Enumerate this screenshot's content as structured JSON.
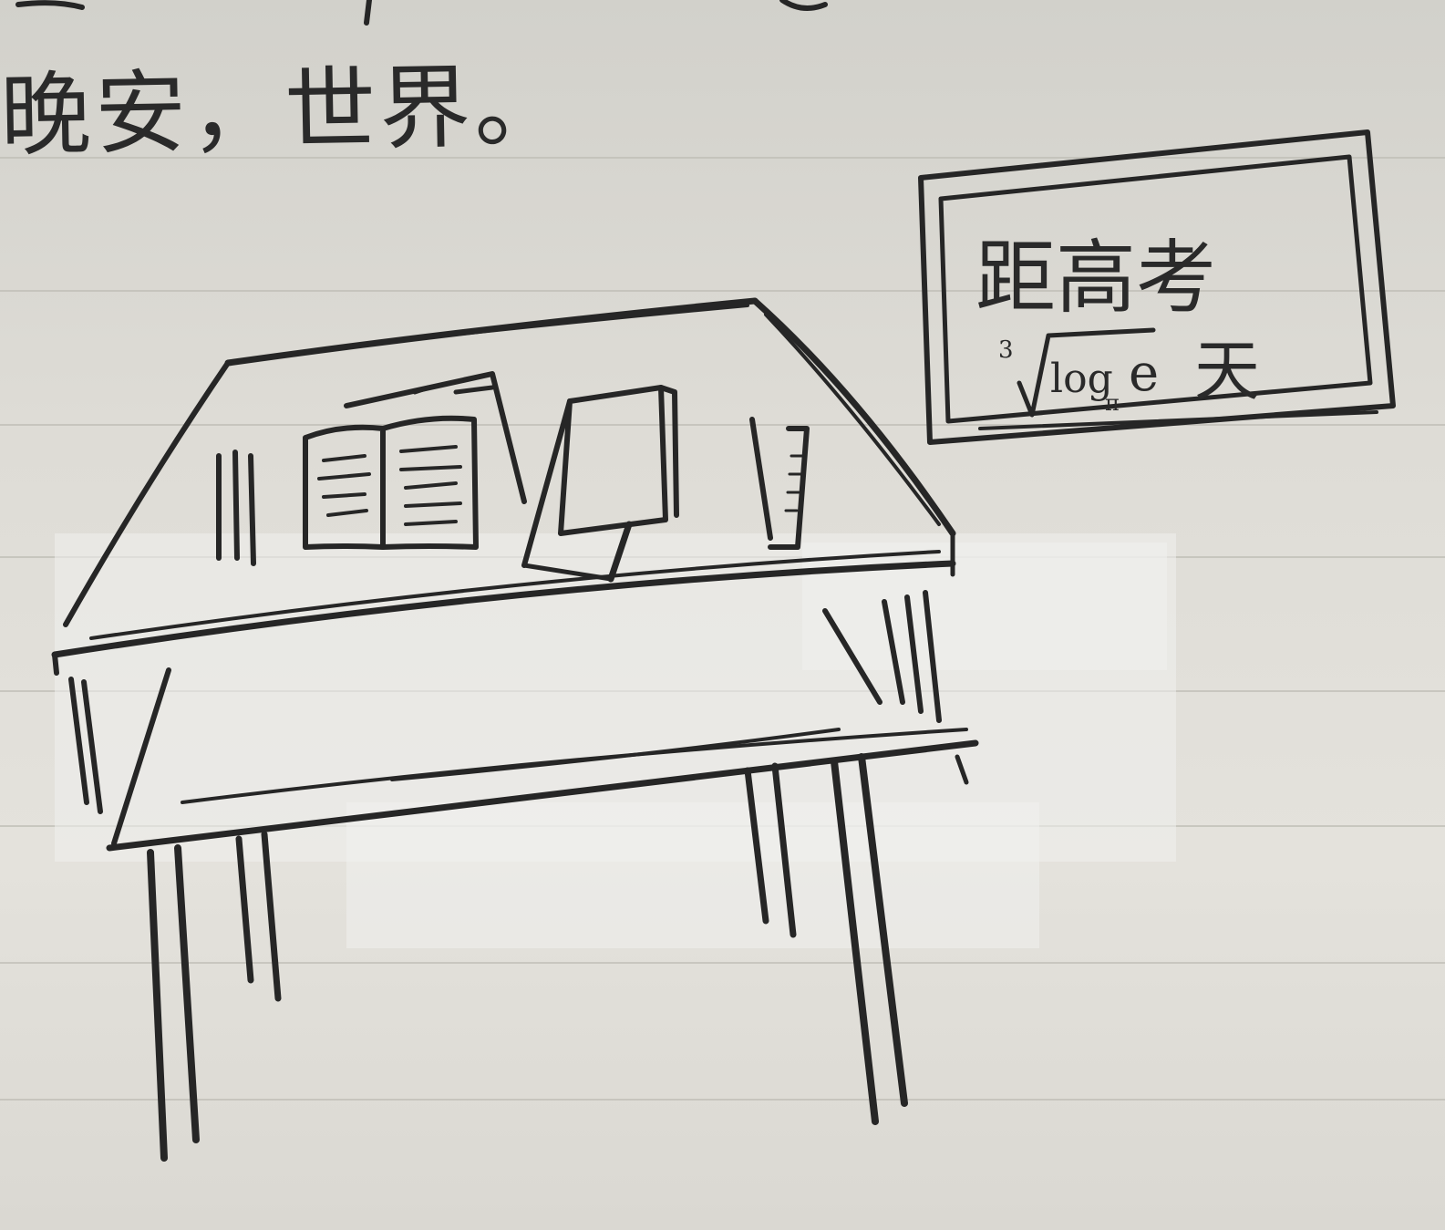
{
  "greeting": "晚安，世界。",
  "board": {
    "headline": "距高考",
    "countdown": {
      "root_index": "3",
      "log_word": "log",
      "log_base": "π",
      "argument": "e",
      "unit": "天"
    }
  }
}
